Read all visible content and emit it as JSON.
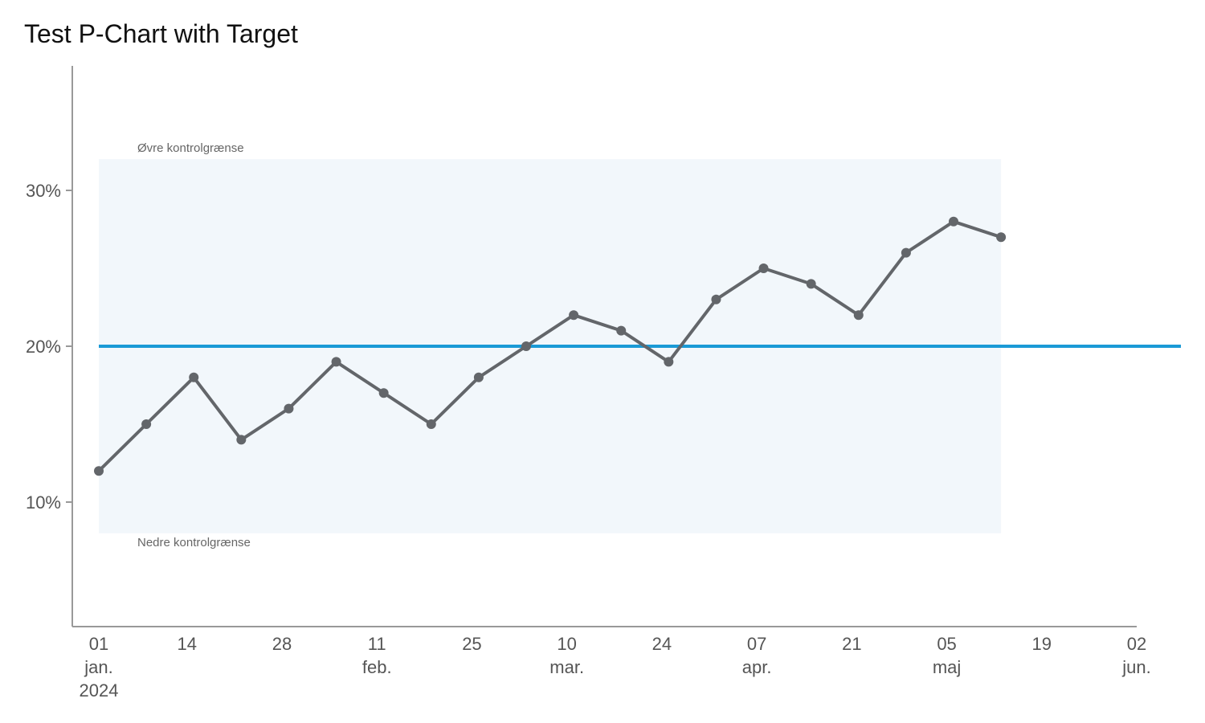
{
  "chart_data": {
    "type": "line",
    "title": "Test P-Chart with Target",
    "xlabel": "",
    "ylabel": "",
    "x": [
      "2024-01-01",
      "2024-01-08",
      "2024-01-15",
      "2024-01-22",
      "2024-01-29",
      "2024-02-05",
      "2024-02-12",
      "2024-02-19",
      "2024-02-26",
      "2024-03-04",
      "2024-03-11",
      "2024-03-18",
      "2024-03-25",
      "2024-04-01",
      "2024-04-08",
      "2024-04-15",
      "2024-04-22",
      "2024-04-29",
      "2024-05-06",
      "2024-05-13"
    ],
    "series": [
      {
        "name": "",
        "values": [
          12,
          15,
          18,
          14,
          16,
          19,
          17,
          15,
          18,
          20,
          22,
          21,
          19,
          23,
          25,
          24,
          22,
          26,
          28,
          27
        ]
      }
    ],
    "y_unit": "%",
    "ylim": [
      2,
      37
    ],
    "xlim": [
      "2023-12-28",
      "2024-06-02"
    ],
    "y_ticks": [
      10,
      20,
      30
    ],
    "y_tick_labels": [
      "10%",
      "20%",
      "30%"
    ],
    "x_ticks": [
      {
        "date": "2024-01-01",
        "day": "01",
        "month": "jan.",
        "year": "2024"
      },
      {
        "date": "2024-01-14",
        "day": "14",
        "month": "",
        "year": ""
      },
      {
        "date": "2024-01-28",
        "day": "28",
        "month": "",
        "year": ""
      },
      {
        "date": "2024-02-11",
        "day": "11",
        "month": "feb.",
        "year": ""
      },
      {
        "date": "2024-02-25",
        "day": "25",
        "month": "",
        "year": ""
      },
      {
        "date": "2024-03-10",
        "day": "10",
        "month": "mar.",
        "year": ""
      },
      {
        "date": "2024-03-24",
        "day": "24",
        "month": "",
        "year": ""
      },
      {
        "date": "2024-04-07",
        "day": "07",
        "month": "apr.",
        "year": ""
      },
      {
        "date": "2024-04-21",
        "day": "21",
        "month": "",
        "year": ""
      },
      {
        "date": "2024-05-05",
        "day": "05",
        "month": "maj",
        "year": ""
      },
      {
        "date": "2024-05-19",
        "day": "19",
        "month": "",
        "year": ""
      },
      {
        "date": "2024-06-02",
        "day": "02",
        "month": "jun.",
        "year": ""
      }
    ],
    "target": 20,
    "control_band": {
      "upper": 32,
      "lower": 8,
      "start": "2024-01-01",
      "end": "2024-05-13",
      "upper_label": "Øvre kontrolgrænse",
      "lower_label": "Nedre kontrolgrænse"
    },
    "grid": false,
    "legend": "none",
    "colors": {
      "line": "#63666a",
      "target": "#1a9ad6",
      "band": "#f2f7fb",
      "axis": "#999999"
    }
  }
}
